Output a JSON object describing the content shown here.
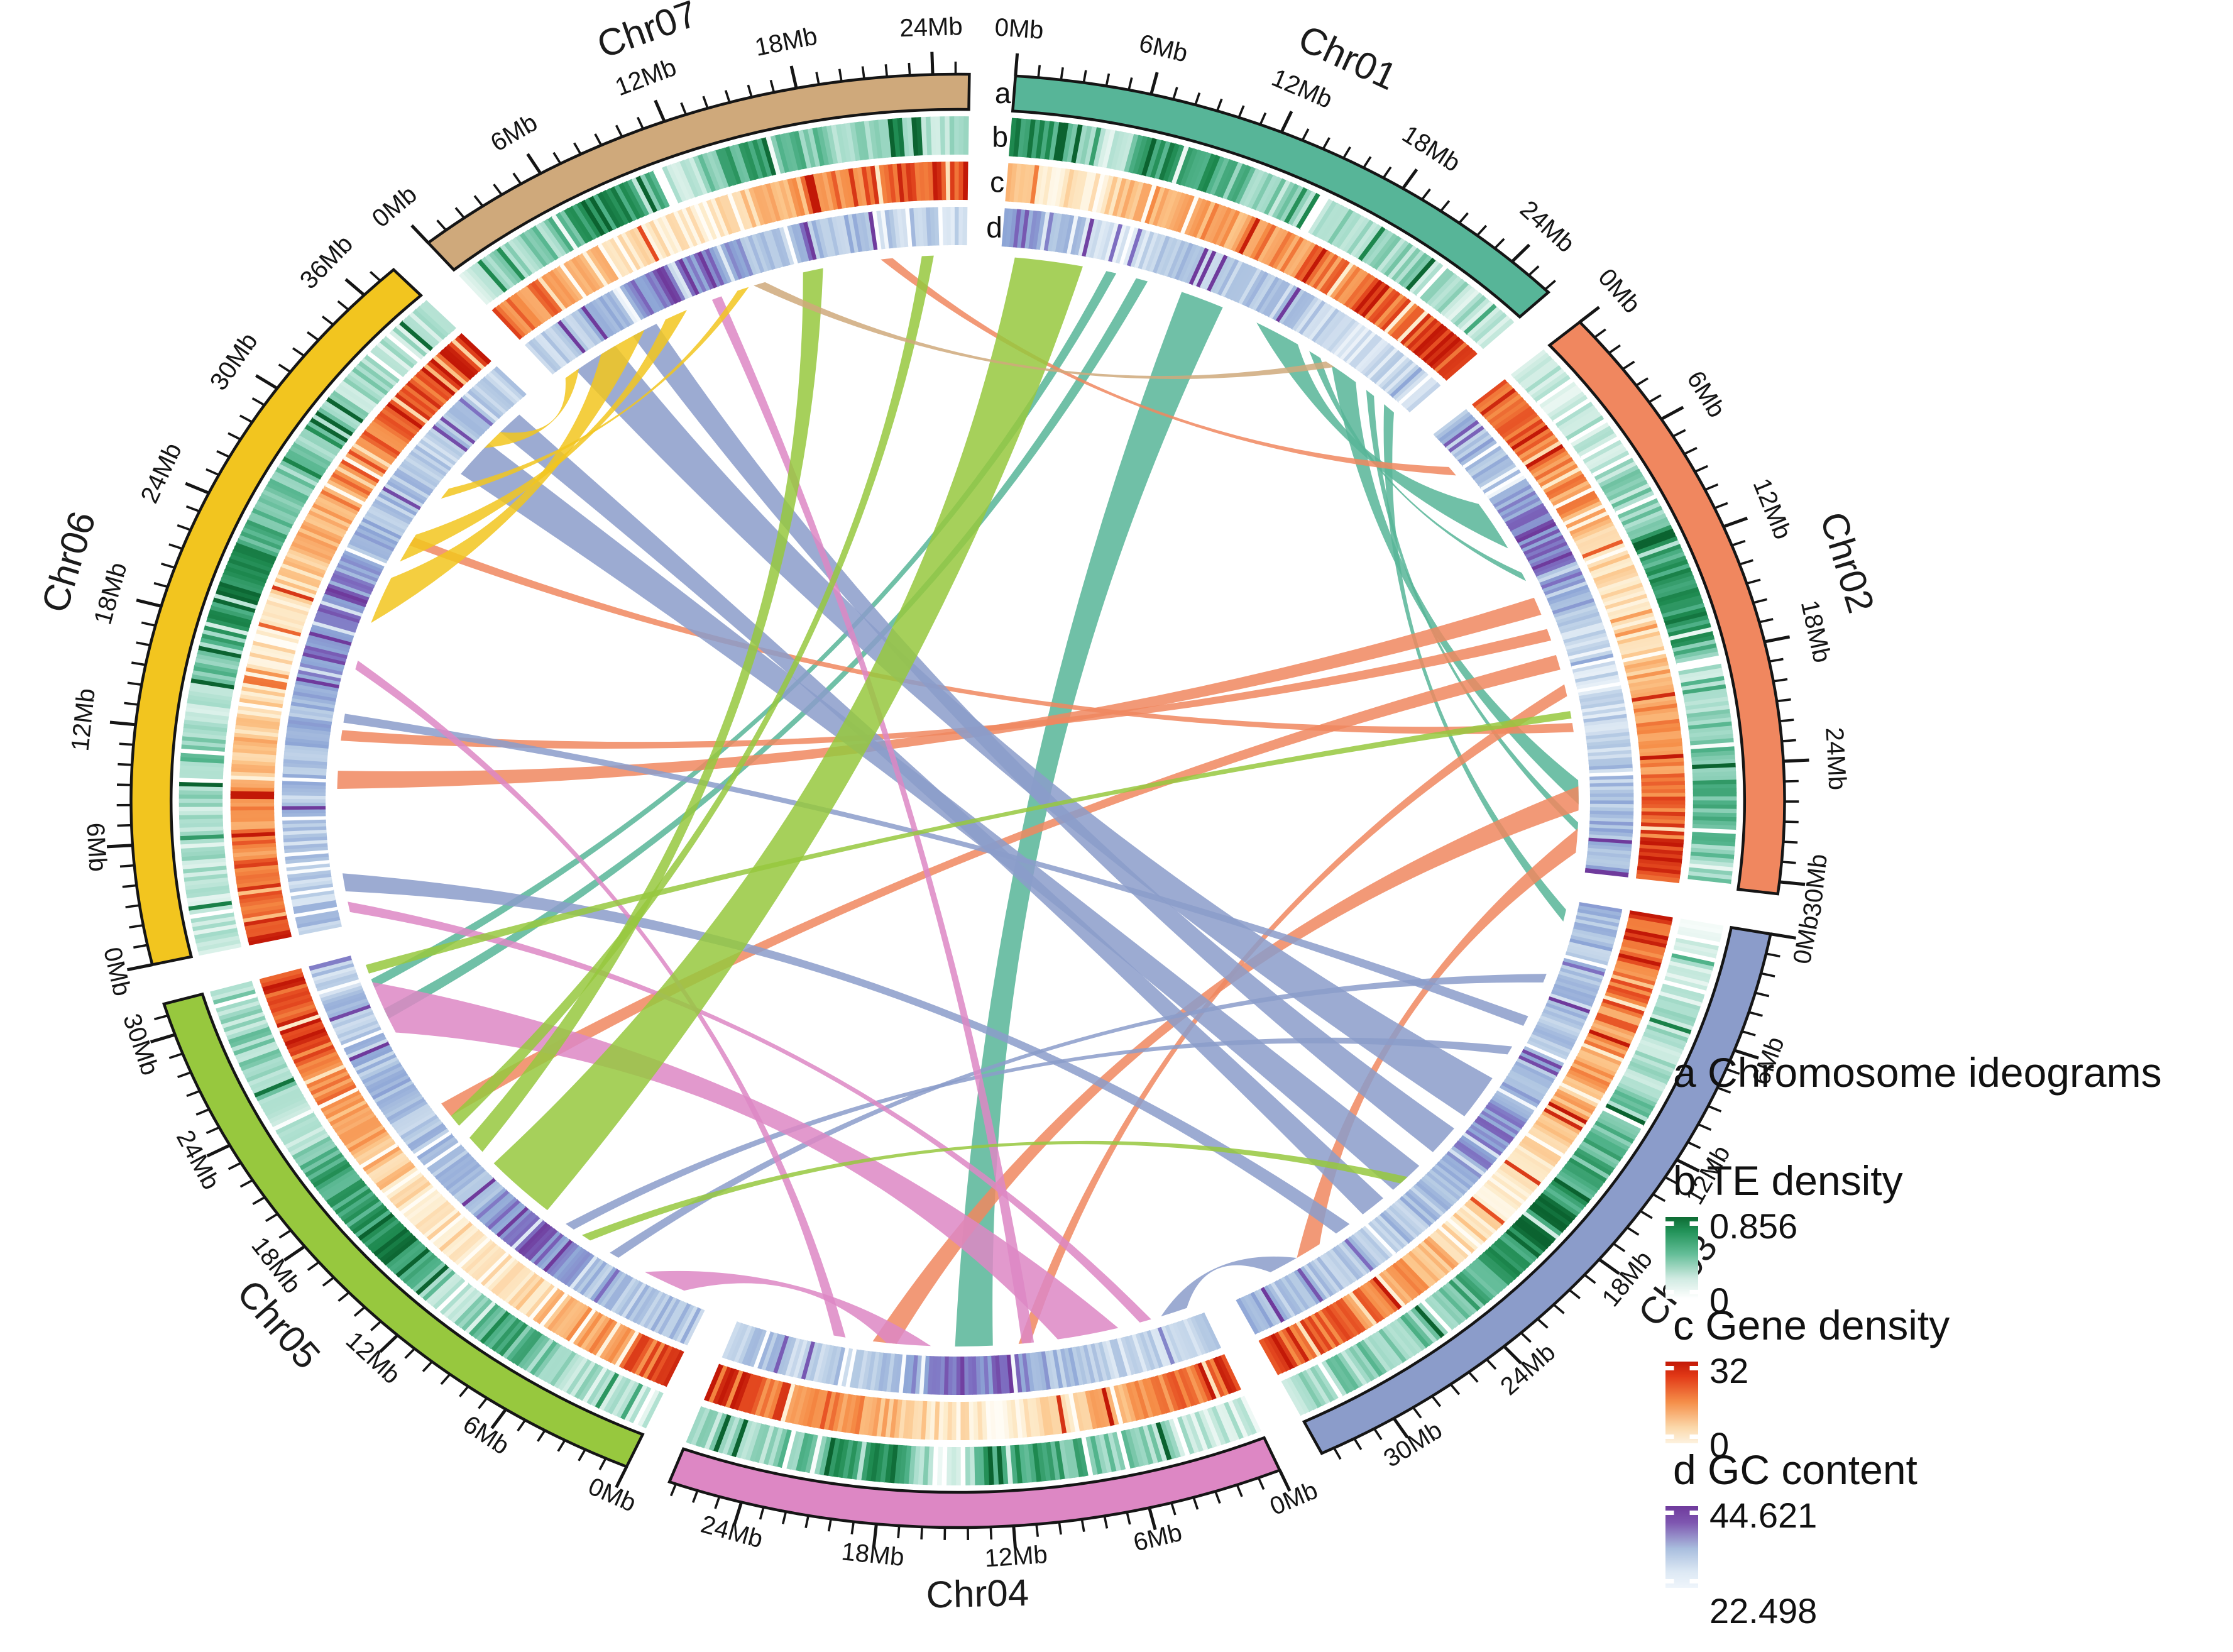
{
  "figure_type": "circular genome (circos) plot",
  "ring_labels": [
    "a",
    "b",
    "c",
    "d"
  ],
  "legend": {
    "ideograms_label": "a Chromosome ideograms",
    "te": {
      "label": "b TE density",
      "max": "0.856",
      "min": "0",
      "gradient": [
        [
          "0%",
          "#0d6b33"
        ],
        [
          "18%",
          "#23945a"
        ],
        [
          "45%",
          "#63bd97"
        ],
        [
          "75%",
          "#cfeae1"
        ],
        [
          "100%",
          "#ffffff"
        ]
      ]
    },
    "gene": {
      "label": "c Gene density",
      "max": "32",
      "min": "0",
      "gradient": [
        [
          "0%",
          "#c21807"
        ],
        [
          "18%",
          "#e23a17"
        ],
        [
          "50%",
          "#f58f4a"
        ],
        [
          "80%",
          "#fbd7a9"
        ],
        [
          "100%",
          "#fdf2df"
        ]
      ]
    },
    "gc": {
      "label": "d GC content",
      "max": "44.621",
      "min": "22.498",
      "gradient": [
        [
          "0%",
          "#6f3a9c"
        ],
        [
          "20%",
          "#7e56b0"
        ],
        [
          "52%",
          "#a9bede"
        ],
        [
          "80%",
          "#dce8f4"
        ],
        [
          "100%",
          "#eff5fb"
        ]
      ]
    }
  },
  "chart_data": {
    "type": "circos",
    "unit": "Mb",
    "tick_major_interval_mb": 6,
    "tick_minor_interval_mb": 1,
    "chromosomes": [
      {
        "name": "Chr01",
        "length_mb": 26.2,
        "color": "#57b598"
      },
      {
        "name": "Chr02",
        "length_mb": 30.6,
        "color": "#f0875f"
      },
      {
        "name": "Chr03",
        "length_mb": 33.6,
        "color": "#8b9cca"
      },
      {
        "name": "Chr04",
        "length_mb": 27.3,
        "color": "#dd87c4"
      },
      {
        "name": "Chr05",
        "length_mb": 31.6,
        "color": "#97c83e"
      },
      {
        "name": "Chr06",
        "length_mb": 37.8,
        "color": "#f2c51f"
      },
      {
        "name": "Chr07",
        "length_mb": 25.6,
        "color": "#cfa97b"
      }
    ],
    "tracks": {
      "te_density": {
        "ring": "b",
        "label": "TE density",
        "min": 0,
        "max": 0.856,
        "stops": [
          [
            0,
            "#ffffff"
          ],
          [
            0.18,
            "#e3f4ee"
          ],
          [
            0.42,
            "#a8ddcc"
          ],
          [
            0.65,
            "#52b48c"
          ],
          [
            0.85,
            "#1e8a50"
          ],
          [
            1,
            "#0b6330"
          ]
        ],
        "profiles": {
          "Chr01": [
            0.82,
            0.78,
            0.25,
            0.78,
            0.72,
            0.5,
            0.42,
            0.4,
            0.44,
            0.4,
            0.34,
            0.3
          ],
          "Chr02": [
            0.3,
            0.3,
            0.36,
            0.42,
            0.62,
            0.85,
            0.78,
            0.25,
            0.5,
            0.62,
            0.55,
            0.45
          ],
          "Chr03": [
            0.2,
            0.3,
            0.36,
            0.42,
            0.56,
            0.7,
            0.85,
            0.78,
            0.55,
            0.5,
            0.45,
            0.4
          ],
          "Chr04": [
            0.25,
            0.3,
            0.46,
            0.52,
            0.66,
            0.85,
            0.15,
            0.8,
            0.74,
            0.5,
            0.45,
            0.4
          ],
          "Chr05": [
            0.25,
            0.3,
            0.5,
            0.75,
            0.3,
            0.85,
            0.8,
            0.7,
            0.35,
            0.5,
            0.45,
            0.4
          ],
          "Chr06": [
            0.25,
            0.3,
            0.35,
            0.5,
            0.3,
            0.8,
            0.85,
            0.6,
            0.5,
            0.45,
            0.35,
            0.28
          ],
          "Chr07": [
            0.25,
            0.4,
            0.52,
            0.8,
            0.85,
            0.15,
            0.75,
            0.6,
            0.5,
            0.46,
            0.4,
            0.35
          ]
        }
      },
      "gene_density": {
        "ring": "c",
        "label": "Gene density",
        "min": 0,
        "max": 32,
        "stops": [
          [
            0,
            "#fffcf5"
          ],
          [
            0.2,
            "#fdeccc"
          ],
          [
            0.45,
            "#fcc488"
          ],
          [
            0.68,
            "#f58a44"
          ],
          [
            0.85,
            "#e54a20"
          ],
          [
            1,
            "#c21807"
          ]
        ],
        "profiles": {
          "Chr01": [
            0.55,
            0.2,
            0.25,
            0.5,
            0.55,
            0.6,
            0.65,
            0.68,
            0.7,
            0.75,
            0.85,
            0.9
          ],
          "Chr02": [
            0.8,
            0.75,
            0.65,
            0.55,
            0.35,
            0.2,
            0.3,
            0.55,
            0.65,
            0.7,
            0.8,
            0.9
          ],
          "Chr03": [
            0.85,
            0.8,
            0.7,
            0.6,
            0.45,
            0.25,
            0.2,
            0.35,
            0.55,
            0.65,
            0.8,
            0.85
          ],
          "Chr04": [
            0.85,
            0.75,
            0.6,
            0.45,
            0.25,
            0.15,
            0.2,
            0.4,
            0.6,
            0.7,
            0.8,
            0.85
          ],
          "Chr05": [
            0.85,
            0.7,
            0.55,
            0.3,
            0.2,
            0.25,
            0.3,
            0.45,
            0.6,
            0.75,
            0.85,
            0.9
          ],
          "Chr06": [
            0.85,
            0.8,
            0.65,
            0.5,
            0.3,
            0.2,
            0.3,
            0.5,
            0.65,
            0.75,
            0.85,
            0.9
          ],
          "Chr07": [
            0.8,
            0.7,
            0.55,
            0.35,
            0.2,
            0.15,
            0.35,
            0.55,
            0.7,
            0.8,
            0.85,
            0.9
          ]
        }
      },
      "gc_content": {
        "ring": "d",
        "label": "GC content",
        "min": 22.498,
        "max": 44.621,
        "stops": [
          [
            0,
            "#fdfeff"
          ],
          [
            0.22,
            "#e1ebf5"
          ],
          [
            0.45,
            "#b6cbe4"
          ],
          [
            0.68,
            "#8da5d6"
          ],
          [
            0.85,
            "#7d6cc0"
          ],
          [
            1,
            "#6f3a9c"
          ]
        ],
        "profiles": {
          "Chr01": [
            0.85,
            0.7,
            0.3,
            0.25,
            0.4,
            0.5,
            0.45,
            0.4,
            0.35,
            0.3,
            0.3,
            0.25
          ],
          "Chr02": [
            0.5,
            0.55,
            0.6,
            0.8,
            0.85,
            0.5,
            0.25,
            0.3,
            0.4,
            0.5,
            0.55,
            0.6
          ],
          "Chr03": [
            0.6,
            0.5,
            0.45,
            0.5,
            0.6,
            0.75,
            0.7,
            0.5,
            0.45,
            0.4,
            0.5,
            0.55
          ],
          "Chr04": [
            0.45,
            0.4,
            0.35,
            0.45,
            0.6,
            0.85,
            0.8,
            0.6,
            0.45,
            0.4,
            0.45,
            0.5
          ],
          "Chr05": [
            0.5,
            0.45,
            0.5,
            0.75,
            0.85,
            0.6,
            0.5,
            0.45,
            0.55,
            0.5,
            0.45,
            0.4
          ],
          "Chr06": [
            0.45,
            0.4,
            0.45,
            0.5,
            0.55,
            0.8,
            0.85,
            0.6,
            0.5,
            0.45,
            0.4,
            0.35
          ],
          "Chr07": [
            0.4,
            0.45,
            0.55,
            0.8,
            0.85,
            0.75,
            0.5,
            0.45,
            0.5,
            0.45,
            0.4,
            0.35
          ]
        }
      }
    },
    "links": [
      {
        "source": [
          "Chr01",
          10.8,
          13.4
        ],
        "target": [
          "Chr04",
          12.4,
          14.6
        ],
        "color_by": "Chr01"
      },
      {
        "source": [
          "Chr01",
          15.6,
          18.4
        ],
        "target": [
          "Chr02",
          5.2,
          8.6
        ],
        "color_by": "Chr01"
      },
      {
        "source": [
          "Chr01",
          19.2,
          20.0
        ],
        "target": [
          "Chr02",
          10.4,
          11.0
        ],
        "color_by": "Chr01"
      },
      {
        "source": [
          "Chr01",
          20.8,
          22.6
        ],
        "target": [
          "Chr02",
          24.6,
          26.2
        ],
        "color_by": "Chr01"
      },
      {
        "source": [
          "Chr01",
          23.4,
          24.0
        ],
        "target": [
          "Chr02",
          27.4,
          28.0
        ],
        "color_by": "Chr01"
      },
      {
        "source": [
          "Chr01",
          8.0,
          8.7
        ],
        "target": [
          "Chr05",
          27.0,
          27.7
        ],
        "color_by": "Chr01"
      },
      {
        "source": [
          "Chr01",
          6.2,
          6.8
        ],
        "target": [
          "Chr05",
          29.2,
          29.8
        ],
        "color_by": "Chr01"
      },
      {
        "source": [
          "Chr01",
          24.8,
          25.6
        ],
        "target": [
          "Chr03",
          0.6,
          1.4
        ],
        "color_by": "Chr01"
      },
      {
        "source": [
          "Chr02",
          12.2,
          13.4
        ],
        "target": [
          "Chr06",
          9.0,
          10.2
        ],
        "color_by": "Chr02"
      },
      {
        "source": [
          "Chr02",
          14.4,
          15.2
        ],
        "target": [
          "Chr06",
          12.2,
          12.9
        ],
        "color_by": "Chr02"
      },
      {
        "source": [
          "Chr02",
          16.2,
          17.2
        ],
        "target": [
          "Chr05",
          19.6,
          20.6
        ],
        "color_by": "Chr02"
      },
      {
        "source": [
          "Chr02",
          18.2,
          19.0
        ],
        "target": [
          "Chr04",
          10.2,
          10.9
        ],
        "color_by": "Chr02"
      },
      {
        "source": [
          "Chr02",
          25.0,
          26.6
        ],
        "target": [
          "Chr04",
          18.0,
          19.4
        ],
        "color_by": "Chr02"
      },
      {
        "source": [
          "Chr02",
          27.8,
          29.4
        ],
        "target": [
          "Chr03",
          27.6,
          29.2
        ],
        "color_by": "Chr02"
      },
      {
        "source": [
          "Chr02",
          2.2,
          2.9
        ],
        "target": [
          "Chr07",
          20.6,
          21.3
        ],
        "color_by": "Chr02"
      },
      {
        "source": [
          "Chr02",
          20.8,
          21.4
        ],
        "target": [
          "Chr06",
          25.8,
          26.4
        ],
        "color_by": "Chr02"
      },
      {
        "source": [
          "Chr03",
          12.6,
          15.6
        ],
        "target": [
          "Chr07",
          1.2,
          4.0
        ],
        "color_by": "Chr03"
      },
      {
        "source": [
          "Chr03",
          16.6,
          18.6
        ],
        "target": [
          "Chr07",
          5.2,
          6.8
        ],
        "color_by": "Chr03"
      },
      {
        "source": [
          "Chr03",
          19.8,
          22.0
        ],
        "target": [
          "Chr06",
          31.4,
          34.0
        ],
        "color_by": "Chr03"
      },
      {
        "source": [
          "Chr03",
          22.8,
          24.4
        ],
        "target": [
          "Chr06",
          35.0,
          36.6
        ],
        "color_by": "Chr03"
      },
      {
        "source": [
          "Chr03",
          25.4,
          26.4
        ],
        "target": [
          "Chr06",
          2.2,
          3.4
        ],
        "color_by": "Chr03"
      },
      {
        "source": [
          "Chr03",
          8.0,
          8.7
        ],
        "target": [
          "Chr06",
          13.4,
          14.0
        ],
        "color_by": "Chr03"
      },
      {
        "source": [
          "Chr03",
          29.2,
          31.0
        ],
        "target": [
          "Chr04",
          0.8,
          2.4
        ],
        "color_by": "Chr03"
      },
      {
        "source": [
          "Chr03",
          5.0,
          5.6
        ],
        "target": [
          "Chr05",
          6.0,
          6.6
        ],
        "color_by": "Chr03"
      },
      {
        "source": [
          "Chr03",
          10.2,
          10.8
        ],
        "target": [
          "Chr05",
          9.2,
          9.8
        ],
        "color_by": "Chr03"
      },
      {
        "source": [
          "Chr04",
          5.0,
          8.6
        ],
        "target": [
          "Chr05",
          26.0,
          29.6
        ],
        "color_by": "Chr04"
      },
      {
        "source": [
          "Chr04",
          16.0,
          18.6
        ],
        "target": [
          "Chr05",
          1.6,
          4.2
        ],
        "color_by": "Chr04"
      },
      {
        "source": [
          "Chr04",
          21.0,
          21.7
        ],
        "target": [
          "Chr06",
          17.0,
          17.6
        ],
        "color_by": "Chr04"
      },
      {
        "source": [
          "Chr04",
          10.0,
          10.7
        ],
        "target": [
          "Chr07",
          10.4,
          11.0
        ],
        "color_by": "Chr04"
      },
      {
        "source": [
          "Chr04",
          3.0,
          3.7
        ],
        "target": [
          "Chr06",
          0.8,
          1.5
        ],
        "color_by": "Chr04"
      },
      {
        "source": [
          "Chr05",
          11.2,
          15.6
        ],
        "target": [
          "Chr01",
          0.8,
          4.8
        ],
        "color_by": "Chr05"
      },
      {
        "source": [
          "Chr05",
          16.6,
          17.8
        ],
        "target": [
          "Chr07",
          16.0,
          17.2
        ],
        "color_by": "Chr05"
      },
      {
        "source": [
          "Chr05",
          18.8,
          19.6
        ],
        "target": [
          "Chr07",
          23.0,
          23.7
        ],
        "color_by": "Chr05"
      },
      {
        "source": [
          "Chr05",
          8.0,
          8.6
        ],
        "target": [
          "Chr03",
          20.8,
          21.4
        ],
        "color_by": "Chr05"
      },
      {
        "source": [
          "Chr05",
          30.2,
          30.8
        ],
        "target": [
          "Chr02",
          20.0,
          20.5
        ],
        "color_by": "Chr05"
      },
      {
        "source": [
          "Chr06",
          20.2,
          23.4
        ],
        "target": [
          "Chr07",
          3.0,
          6.0
        ],
        "color_by": "Chr06"
      },
      {
        "source": [
          "Chr06",
          24.6,
          26.6
        ],
        "target": [
          "Chr07",
          7.4,
          8.8
        ],
        "color_by": "Chr06"
      },
      {
        "source": [
          "Chr06",
          33.6,
          35.0
        ],
        "target": [
          "Chr07",
          0.4,
          1.4
        ],
        "color_by": "Chr06"
      },
      {
        "source": [
          "Chr06",
          29.4,
          30.2
        ],
        "target": [
          "Chr07",
          12.0,
          12.7
        ],
        "color_by": "Chr06"
      },
      {
        "source": [
          "Chr07",
          13.0,
          13.7
        ],
        "target": [
          "Chr01",
          20.4,
          21.0
        ],
        "color_by": "Chr07"
      }
    ]
  }
}
